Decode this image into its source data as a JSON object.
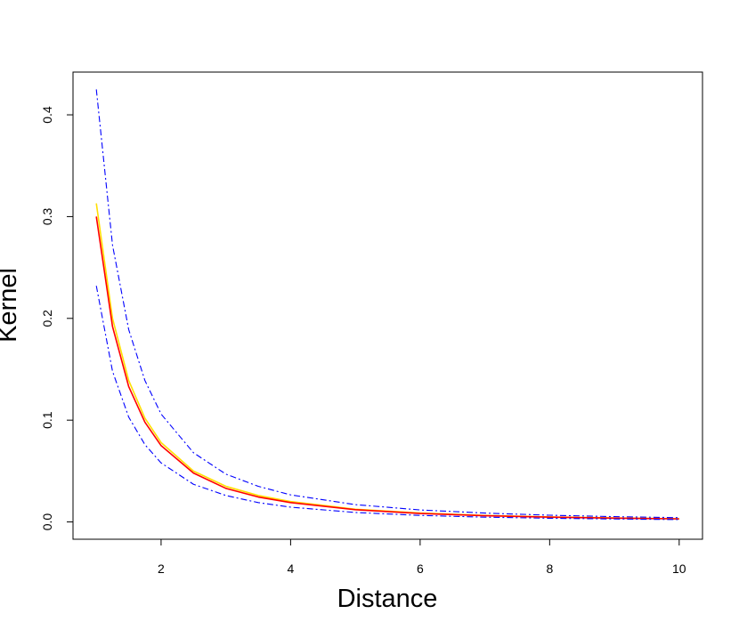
{
  "chart_data": {
    "type": "line",
    "title": "",
    "xlabel": "Distance",
    "ylabel": "Kernel",
    "xlim": [
      0.64,
      10.36
    ],
    "ylim": [
      -0.017,
      0.442
    ],
    "x_ticks": [
      2,
      4,
      6,
      8,
      10
    ],
    "x_tick_labels": [
      "2",
      "4",
      "6",
      "8",
      "10"
    ],
    "y_ticks": [
      0.0,
      0.1,
      0.2,
      0.3,
      0.4
    ],
    "y_tick_labels": [
      "0.0",
      "0.1",
      "0.2",
      "0.3",
      "0.4"
    ],
    "grid": false,
    "legend": "none",
    "x": [
      1.0,
      1.25,
      1.5,
      1.75,
      2.0,
      2.5,
      3.0,
      3.5,
      4.0,
      5.0,
      6.0,
      7.0,
      8.0,
      9.0,
      10.0
    ],
    "series": [
      {
        "color": "#ffdf00",
        "style": "solid",
        "values": [
          0.313,
          0.2,
          0.139,
          0.102,
          0.078,
          0.05,
          0.035,
          0.026,
          0.02,
          0.0125,
          0.0087,
          0.0064,
          0.0049,
          0.0039,
          0.0031
        ]
      },
      {
        "color": "#ff0000",
        "style": "solid",
        "values": [
          0.3,
          0.192,
          0.133,
          0.098,
          0.075,
          0.048,
          0.033,
          0.0245,
          0.019,
          0.012,
          0.0083,
          0.0061,
          0.0047,
          0.0037,
          0.003
        ]
      },
      {
        "color": "#0000ff",
        "style": "dashdot",
        "values": [
          0.425,
          0.272,
          0.189,
          0.139,
          0.106,
          0.068,
          0.047,
          0.035,
          0.0266,
          0.017,
          0.0118,
          0.0087,
          0.0066,
          0.0052,
          0.0042
        ]
      },
      {
        "color": "#0000ff",
        "style": "dashdot",
        "values": [
          0.232,
          0.148,
          0.103,
          0.076,
          0.058,
          0.037,
          0.026,
          0.019,
          0.0145,
          0.0093,
          0.0064,
          0.0047,
          0.0036,
          0.0029,
          0.0023
        ]
      }
    ]
  }
}
